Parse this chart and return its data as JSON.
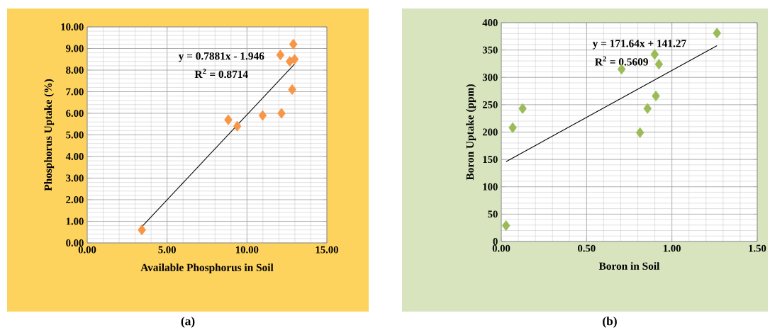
{
  "chart_data": [
    {
      "type": "scatter",
      "xlabel": "Available Phosphorus in Soil",
      "ylabel": "Phosphorus Uptake (%)",
      "xlim": [
        0,
        15
      ],
      "ylim": [
        0,
        10
      ],
      "xticks": [
        {
          "value": 0,
          "label": "0.00"
        },
        {
          "value": 5,
          "label": "5.00"
        },
        {
          "value": 10,
          "label": "10.00"
        },
        {
          "value": 15,
          "label": "15.00"
        }
      ],
      "yticks": [
        {
          "value": 0,
          "label": "0.00"
        },
        {
          "value": 1,
          "label": "1.00"
        },
        {
          "value": 2,
          "label": "2.00"
        },
        {
          "value": 3,
          "label": "3.00"
        },
        {
          "value": 4,
          "label": "4.00"
        },
        {
          "value": 5,
          "label": "5.00"
        },
        {
          "value": 6,
          "label": "6.00"
        },
        {
          "value": 7,
          "label": "7.00"
        },
        {
          "value": 8,
          "label": "8.00"
        },
        {
          "value": 9,
          "label": "9.00"
        },
        {
          "value": 10,
          "label": "10.00"
        }
      ],
      "grid": true,
      "series": [
        {
          "type": "scatter",
          "marker": "diamond",
          "color": "#f79646",
          "x": [
            3.42,
            8.83,
            9.39,
            10.98,
            12.16,
            12.09,
            12.9,
            12.68,
            12.98,
            12.83
          ],
          "values": [
            0.6,
            5.7,
            5.4,
            5.9,
            6.0,
            8.7,
            9.2,
            8.4,
            8.5,
            7.1
          ]
        },
        {
          "type": "line",
          "marker": "none",
          "color": "#000000",
          "x": [
            3.42,
            12.98
          ],
          "values": [
            0.75,
            8.28
          ]
        }
      ],
      "annotations": [
        "y = 0.7881x - 1.946",
        "R$^{2}$ = 0.8714",
        "(a)"
      ]
    },
    {
      "type": "scatter",
      "xlabel": "Boron in Soil",
      "ylabel": "Boron Uptake (ppm)",
      "xlim": [
        0,
        1.5
      ],
      "ylim": [
        0,
        400
      ],
      "xticks": [
        {
          "value": 0,
          "label": "0.00"
        },
        {
          "value": 0.5,
          "label": "0.50"
        },
        {
          "value": 1,
          "label": "1.00"
        },
        {
          "value": 1.5,
          "label": "1.50"
        }
      ],
      "yticks": [
        0,
        50,
        100,
        150,
        200,
        250,
        300,
        350,
        400
      ],
      "grid": true,
      "series": [
        {
          "type": "scatter",
          "marker": "diamond",
          "color": "#9bbb59",
          "x": [
            0.028,
            0.067,
            0.125,
            0.705,
            0.813,
            0.857,
            0.899,
            0.906,
            0.924,
            1.264
          ],
          "values": [
            29,
            208,
            243,
            315,
            199,
            243,
            342,
            266,
            324,
            381
          ]
        },
        {
          "type": "line",
          "marker": "none",
          "color": "#000000",
          "x": [
            0.028,
            1.264
          ],
          "values": [
            146,
            358
          ]
        }
      ],
      "annotations": [
        "y = 171.64x + 141.27",
        "R$^{2}$ = 0.5609",
        "(b)"
      ]
    }
  ]
}
